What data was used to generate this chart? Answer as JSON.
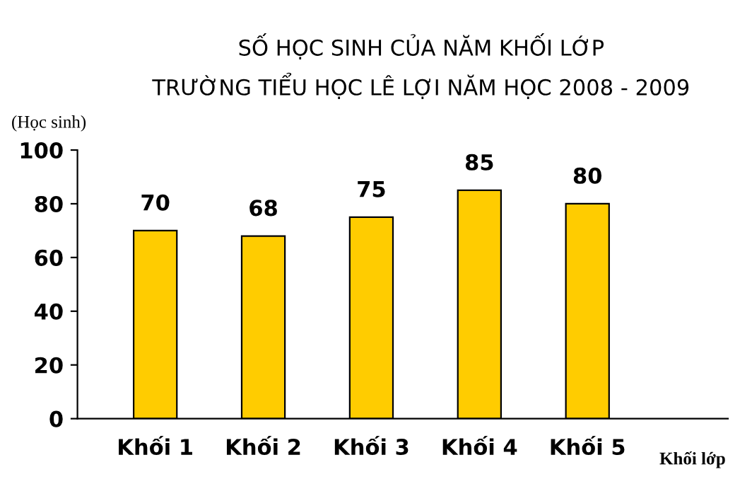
{
  "chart_data": {
    "type": "bar",
    "title": "SỐ HỌC SINH CỦA NĂM KHỐI LỚP\nTRƯỜNG TIỂU HỌC LÊ LỢI NĂM HỌC 2008 - 2009",
    "ylabel": "(Học sinh)",
    "xlabel": "Khối lớp",
    "categories": [
      "Khối 1",
      "Khối 2",
      "Khối 3",
      "Khối 4",
      "Khối 5"
    ],
    "values": [
      70,
      68,
      75,
      85,
      80
    ],
    "color": "#ffcc00",
    "ylim": [
      0,
      100
    ],
    "yticks": [
      0,
      20,
      40,
      60,
      80,
      100
    ],
    "grid": false,
    "data_labels": true
  }
}
